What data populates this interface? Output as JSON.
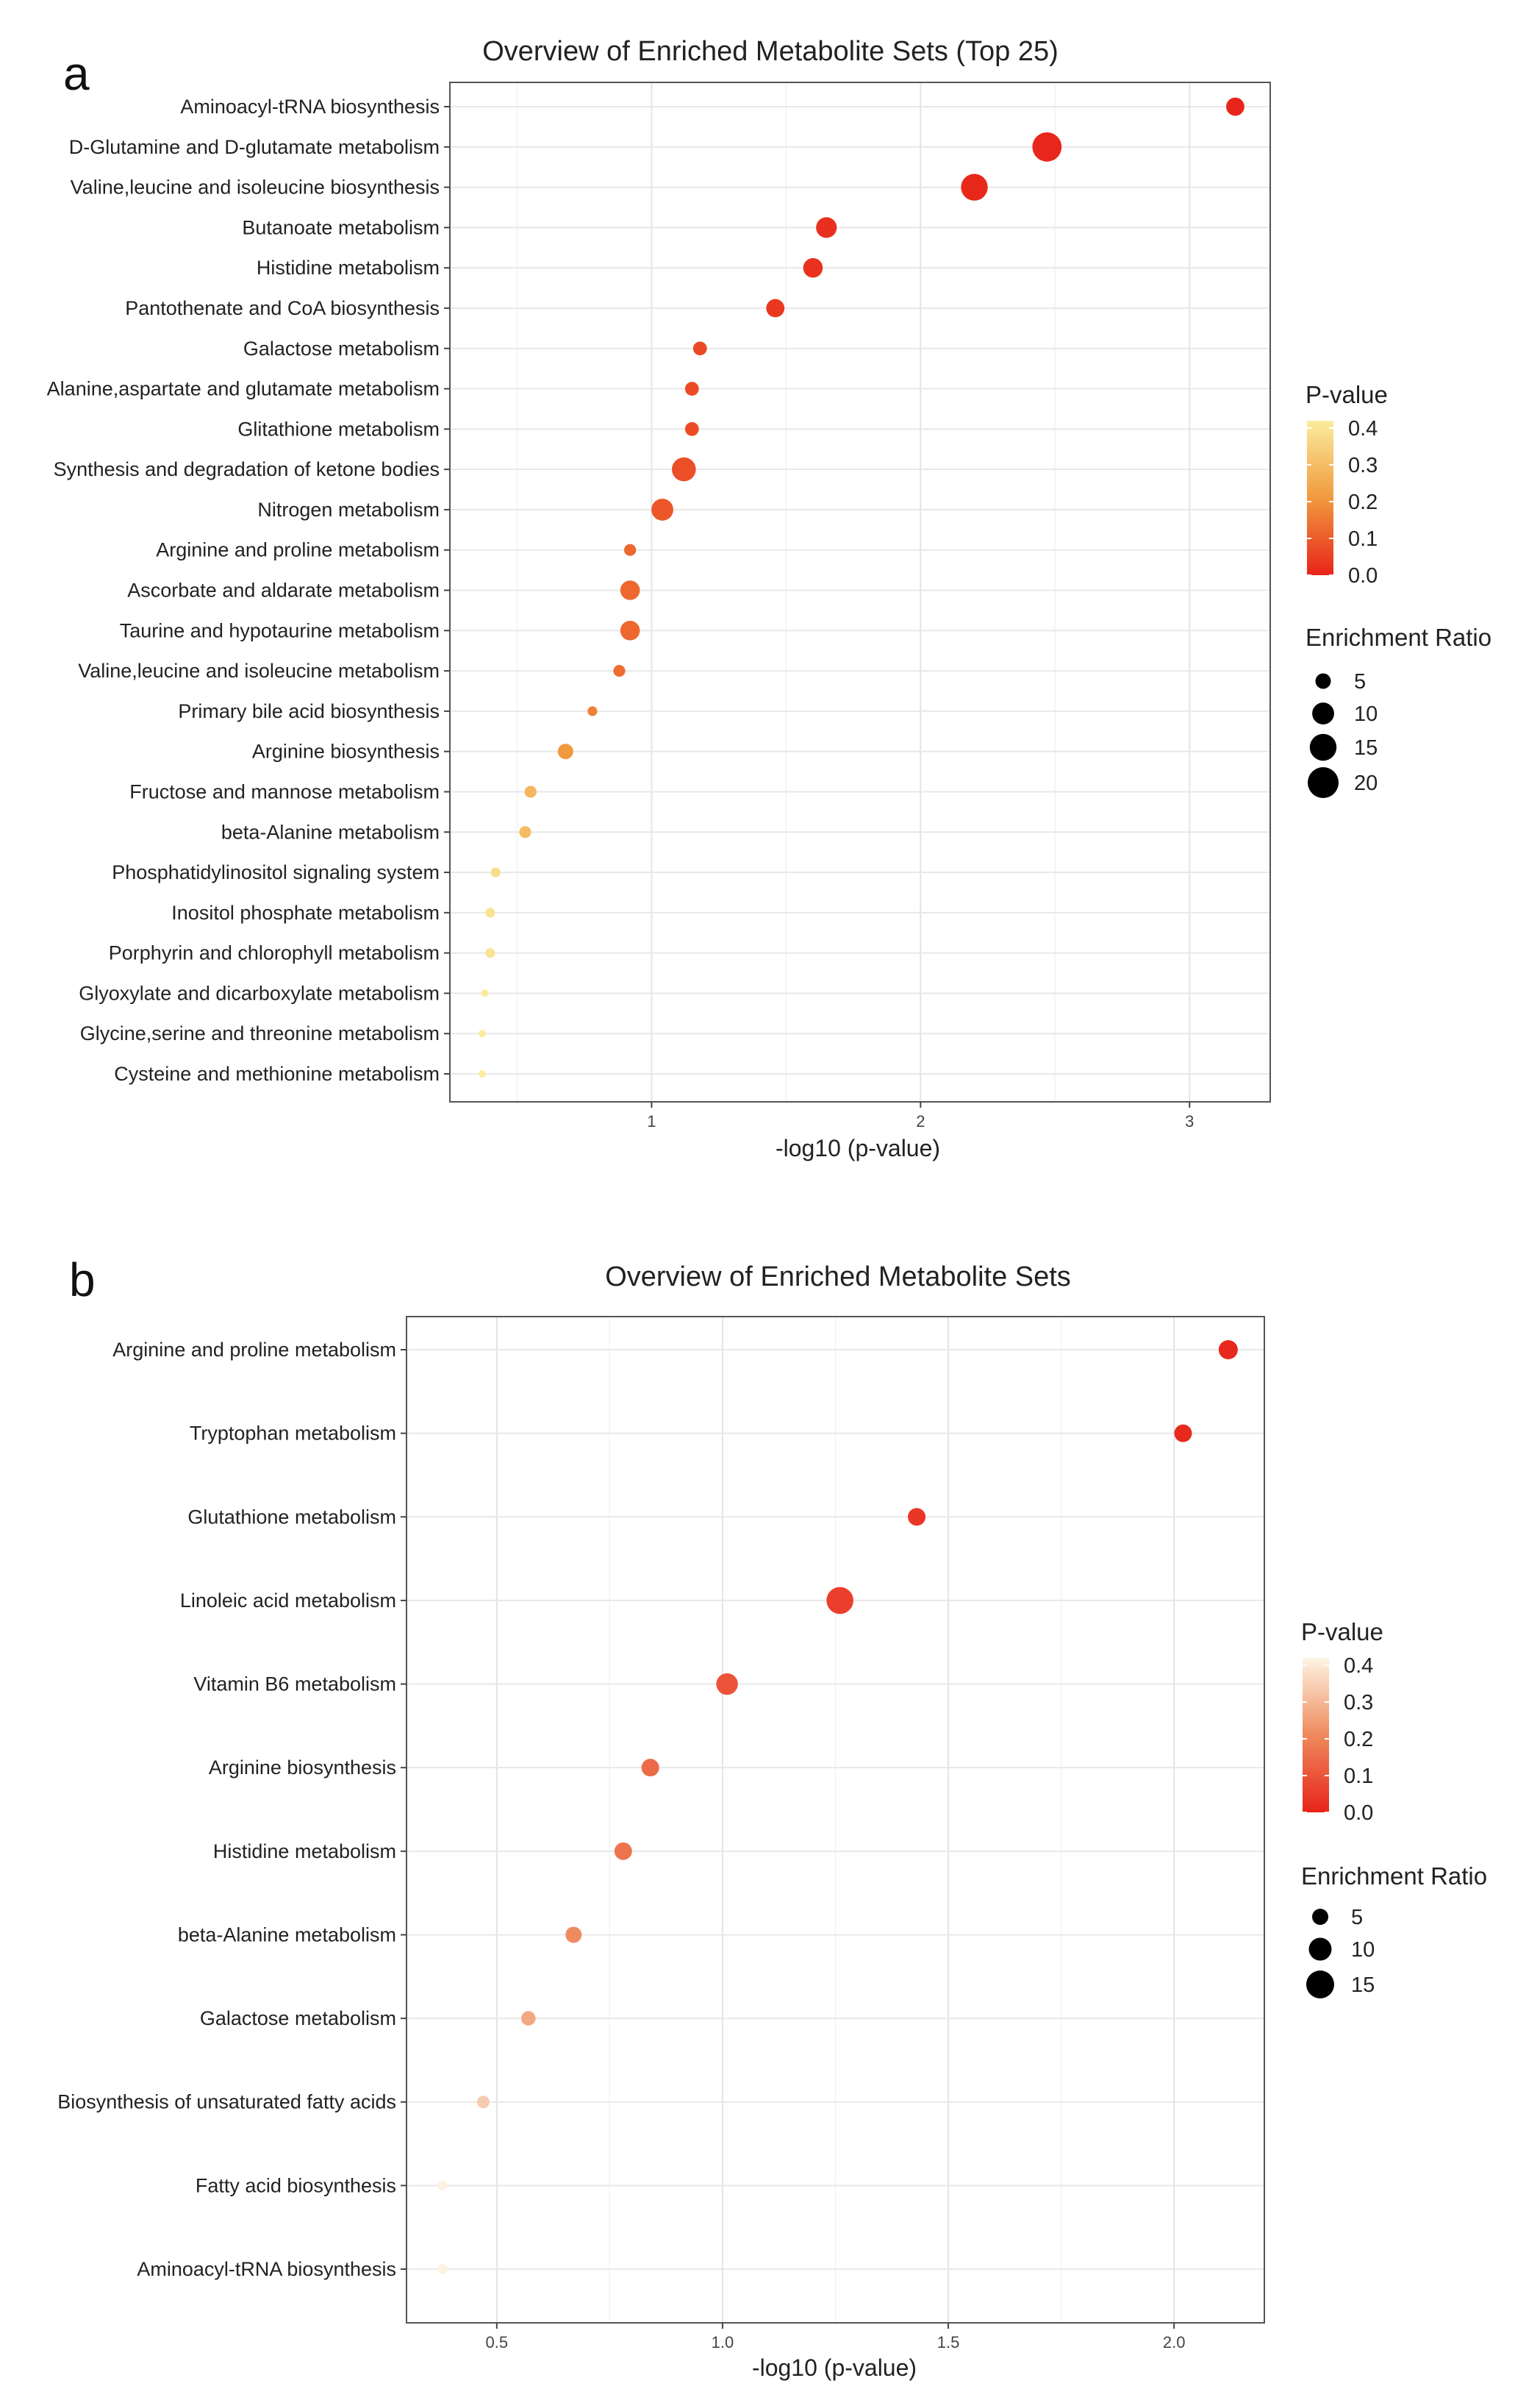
{
  "chart_data": [
    {
      "id": "a",
      "type": "scatter",
      "panel_label": "a",
      "title": "Overview of Enriched Metabolite Sets (Top 25)",
      "xlabel": "-log10 (p-value)",
      "ylabel": "",
      "xlim": [
        0.25,
        3.3
      ],
      "xticks": [
        1,
        2,
        3
      ],
      "grid": true,
      "categories": [
        "Aminoacyl-tRNA biosynthesis",
        "D-Glutamine and D-glutamate metabolism",
        "Valine,leucine and isoleucine biosynthesis",
        "Butanoate metabolism",
        "Histidine metabolism",
        "Pantothenate and CoA biosynthesis",
        "Galactose metabolism",
        "Alanine,aspartate and glutamate metabolism",
        "Glitathione metabolism",
        "Synthesis and degradation of ketone bodies",
        "Nitrogen metabolism",
        "Arginine and proline metabolism",
        "Ascorbate and aldarate metabolism",
        "Taurine and hypotaurine metabolism",
        "Valine,leucine and isoleucine metabolism",
        "Primary bile acid biosynthesis",
        "Arginine biosynthesis",
        "Fructose and mannose metabolism",
        "beta-Alanine metabolism",
        "Phosphatidylinositol signaling system",
        "Inositol phosphate metabolism",
        "Porphyrin and chlorophyll metabolism",
        "Glyoxylate and dicarboxylate metabolism",
        "Glycine,serine and threonine metabolism",
        "Cysteine and methionine metabolism"
      ],
      "x": [
        3.17,
        2.47,
        2.2,
        1.65,
        1.6,
        1.46,
        1.18,
        1.15,
        1.15,
        1.12,
        1.04,
        0.92,
        0.92,
        0.92,
        0.88,
        0.78,
        0.68,
        0.55,
        0.53,
        0.42,
        0.4,
        0.4,
        0.38,
        0.37,
        0.37
      ],
      "p_value": [
        0.001,
        0.003,
        0.006,
        0.022,
        0.025,
        0.035,
        0.066,
        0.071,
        0.071,
        0.076,
        0.091,
        0.12,
        0.12,
        0.12,
        0.132,
        0.166,
        0.209,
        0.282,
        0.295,
        0.38,
        0.398,
        0.398,
        0.417,
        0.427,
        0.427
      ],
      "enrichment_ratio": [
        7,
        18,
        15,
        9,
        8,
        7,
        4,
        4,
        4,
        12,
        10,
        3,
        8,
        8,
        3,
        2,
        5,
        3,
        3,
        2,
        2,
        2,
        1,
        1,
        1
      ],
      "legend": {
        "color_title": "P-value",
        "color_ticks": [
          "0.4",
          "0.3",
          "0.2",
          "0.1",
          "0.0"
        ],
        "color_range": [
          0.0,
          0.42
        ],
        "size_title": "Enrichment Ratio",
        "size_values": [
          5,
          10,
          15,
          20
        ],
        "size_labels": [
          "5",
          "10",
          "15",
          "20"
        ],
        "position": "right"
      }
    },
    {
      "id": "b",
      "type": "scatter",
      "panel_label": "b",
      "title": "Overview of Enriched Metabolite Sets",
      "xlabel": "-log10 (p-value)",
      "ylabel": "",
      "xlim": [
        0.3,
        2.2
      ],
      "xticks": [
        0.5,
        1.0,
        1.5,
        2.0
      ],
      "xtick_labels": [
        "0.5",
        "1.0",
        "1.5",
        "2.0"
      ],
      "grid": true,
      "categories": [
        "Arginine and proline metabolism",
        "Tryptophan metabolism",
        "Glutathione metabolism",
        "Linoleic acid metabolism",
        "Vitamin B6 metabolism",
        "Arginine biosynthesis",
        "Histidine metabolism",
        "beta-Alanine metabolism",
        "Galactose metabolism",
        "Biosynthesis of unsaturated fatty acids",
        "Fatty acid biosynthesis",
        "Aminoacyl-tRNA biosynthesis"
      ],
      "x": [
        2.12,
        2.02,
        1.43,
        1.26,
        1.01,
        0.84,
        0.78,
        0.67,
        0.57,
        0.47,
        0.38,
        0.38
      ],
      "p_value": [
        0.008,
        0.01,
        0.037,
        0.055,
        0.098,
        0.145,
        0.166,
        0.214,
        0.269,
        0.339,
        0.417,
        0.417
      ],
      "enrichment_ratio": [
        7,
        6,
        6,
        14,
        9,
        6,
        6,
        5,
        4,
        3,
        2,
        2
      ],
      "legend": {
        "color_title": "P-value",
        "color_ticks": [
          "0.4",
          "0.3",
          "0.2",
          "0.1",
          "0.0"
        ],
        "color_range": [
          0.0,
          0.42
        ],
        "size_title": "Enrichment Ratio",
        "size_values": [
          5,
          10,
          15
        ],
        "size_labels": [
          "5",
          "10",
          "15"
        ],
        "position": "right"
      }
    }
  ]
}
